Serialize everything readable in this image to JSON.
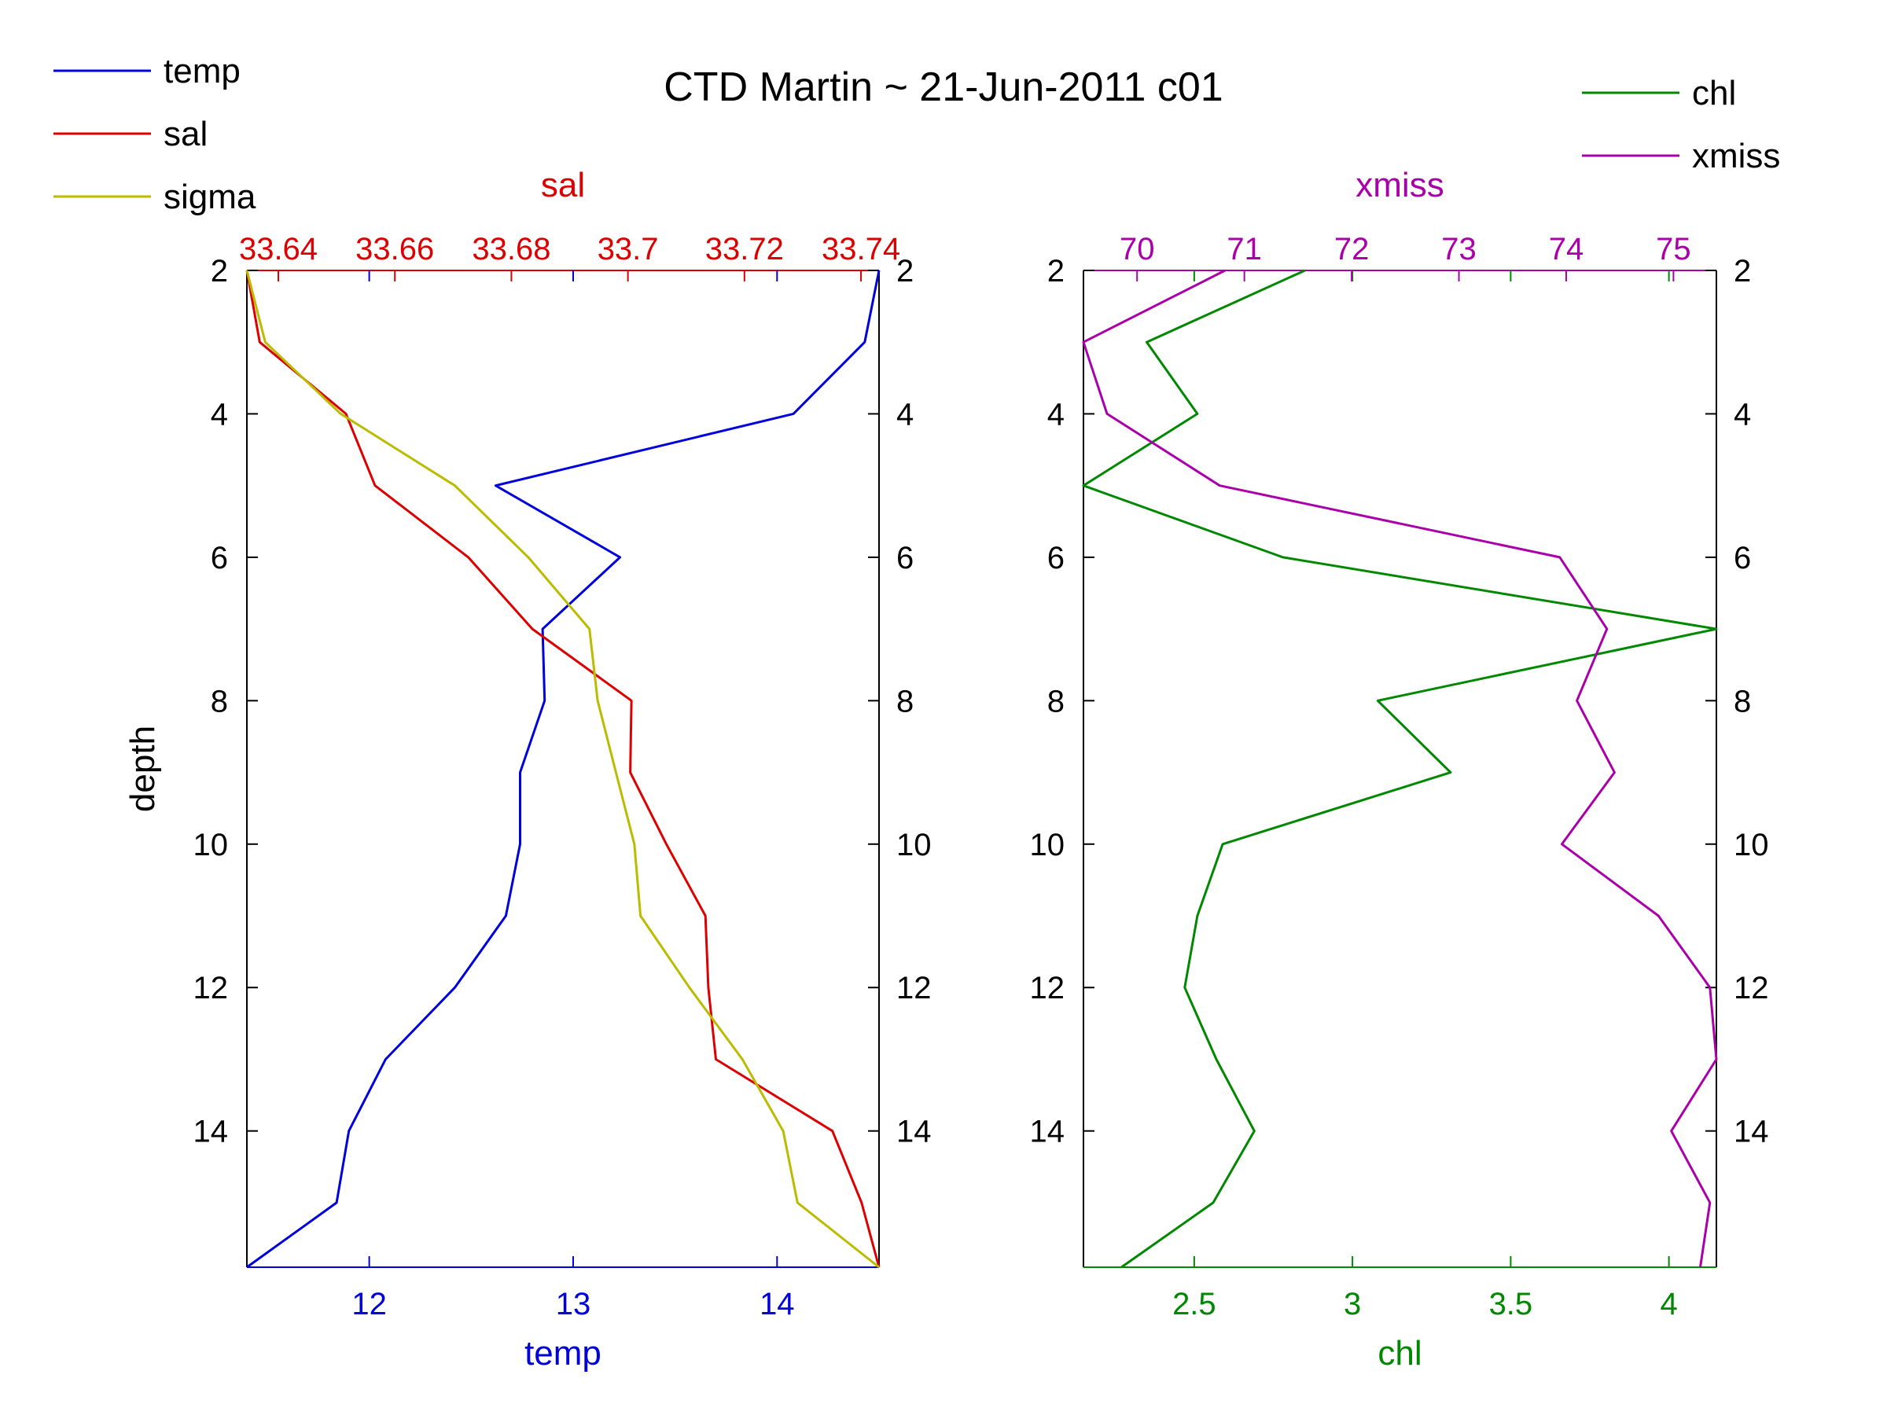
{
  "title": "CTD Martin ~ 21-Jun-2011 c01",
  "colors": {
    "temp": "#0000dd",
    "sal": "#dd0000",
    "sigma": "#bbbb00",
    "chl": "#008800",
    "xmiss": "#aa00aa",
    "axes": "#000000"
  },
  "legend_left": [
    {
      "key": "temp",
      "label": "temp"
    },
    {
      "key": "sal",
      "label": "sal"
    },
    {
      "key": "sigma",
      "label": "sigma"
    }
  ],
  "legend_right": [
    {
      "key": "chl",
      "label": "chl"
    },
    {
      "key": "xmiss",
      "label": "xmiss"
    }
  ],
  "chart_data": [
    {
      "type": "line",
      "ylabel": "depth",
      "ylim": [
        2,
        15.9
      ],
      "yticks": [
        "2",
        "4",
        "6",
        "8",
        "10",
        "12",
        "14"
      ],
      "xbottom": {
        "label": "temp",
        "range": [
          11.4,
          14.5
        ],
        "ticks": [
          "12",
          "13",
          "14"
        ]
      },
      "xtop": {
        "label": "sal",
        "range": [
          33.6346,
          33.7431
        ],
        "ticks": [
          "33.64",
          "33.66",
          "33.68",
          "33.7",
          "33.72",
          "33.74"
        ]
      },
      "series": [
        {
          "key": "temp",
          "axis": "bottom",
          "depth": [
            2,
            3,
            4,
            5,
            6,
            7,
            8,
            9,
            10,
            11,
            12,
            13,
            14,
            15,
            15.9
          ],
          "values": [
            14.5,
            14.43,
            14.08,
            12.62,
            13.23,
            12.85,
            12.86,
            12.74,
            12.74,
            12.67,
            12.42,
            12.08,
            11.9,
            11.84,
            11.4
          ]
        },
        {
          "key": "sal",
          "axis": "top",
          "depth": [
            2,
            3,
            4,
            5,
            6,
            7,
            8,
            9,
            10,
            11,
            12,
            13,
            14,
            15,
            15.9
          ],
          "values": [
            33.6346,
            33.6368,
            33.6516,
            33.6566,
            33.6726,
            33.6836,
            33.7006,
            33.7004,
            33.7066,
            33.7133,
            33.7138,
            33.7151,
            33.7351,
            33.7401,
            33.7431
          ]
        },
        {
          "key": "sigma",
          "axis": "bottom",
          "depth": [
            2,
            3,
            4,
            5,
            6,
            7,
            8,
            9,
            10,
            11,
            12,
            13,
            14,
            15,
            15.9
          ],
          "values": [
            11.4,
            11.49,
            11.86,
            12.42,
            12.78,
            13.08,
            13.12,
            13.21,
            13.3,
            13.33,
            13.57,
            13.83,
            14.03,
            14.1,
            14.5
          ]
        }
      ]
    },
    {
      "type": "line",
      "ylabel": "",
      "ylim": [
        2,
        15.9
      ],
      "yticks": [
        "2",
        "4",
        "6",
        "8",
        "10",
        "12",
        "14"
      ],
      "xbottom": {
        "label": "chl",
        "range": [
          2.15,
          4.15
        ],
        "ticks": [
          "2.5",
          "3",
          "3.5",
          "4"
        ]
      },
      "xtop": {
        "label": "xmiss",
        "range": [
          69.5,
          75.4
        ],
        "ticks": [
          "70",
          "71",
          "72",
          "73",
          "74",
          "75"
        ]
      },
      "series": [
        {
          "key": "chl",
          "axis": "bottom",
          "depth": [
            2,
            3,
            4,
            5,
            6,
            7,
            8,
            9,
            10,
            11,
            12,
            13,
            14,
            15,
            15.9
          ],
          "values": [
            2.85,
            2.35,
            2.51,
            2.15,
            2.78,
            4.15,
            3.08,
            3.31,
            2.59,
            2.51,
            2.47,
            2.57,
            2.69,
            2.56,
            2.27
          ]
        },
        {
          "key": "xmiss",
          "axis": "top",
          "depth": [
            2,
            3,
            4,
            5,
            6,
            7,
            8,
            9,
            10,
            11,
            12,
            13,
            14,
            15,
            15.9
          ],
          "values": [
            70.82,
            69.5,
            69.72,
            70.77,
            73.94,
            74.38,
            74.1,
            74.45,
            73.96,
            74.86,
            75.34,
            75.4,
            74.98,
            75.34,
            75.25
          ]
        }
      ]
    }
  ]
}
